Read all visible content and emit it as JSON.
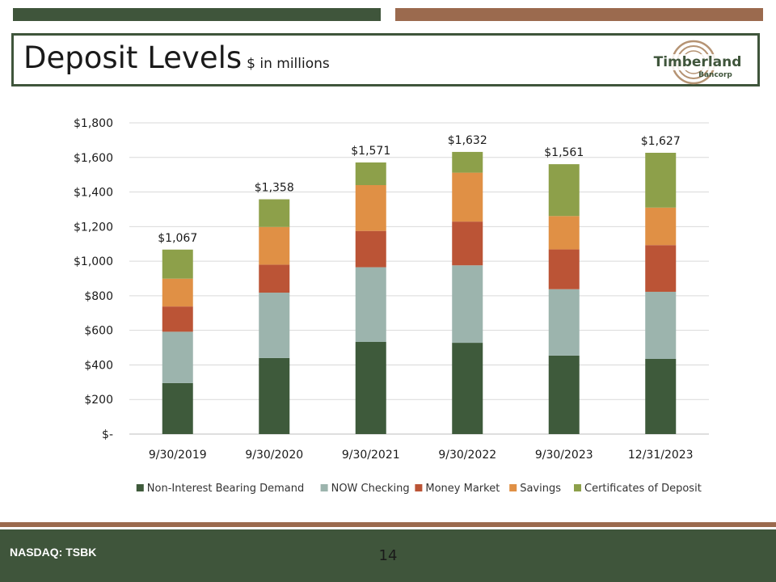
{
  "header": {
    "title": "Deposit Levels",
    "subtitle": "$ in millions",
    "logo_text_line1": "Timberland",
    "logo_text_line2": "Bancorp"
  },
  "footer": {
    "ticker": "NASDAQ: TSBK",
    "page_number": "14"
  },
  "colors": {
    "dark_green": "#3f553b",
    "brown": "#9b6a4e"
  },
  "chart_data": {
    "type": "bar",
    "stacked": true,
    "title": "",
    "xlabel": "",
    "ylabel": "",
    "ylim": [
      0,
      1800
    ],
    "y_ticks": [
      0,
      200,
      400,
      600,
      800,
      1000,
      1200,
      1400,
      1600,
      1800
    ],
    "y_tick_labels": [
      "$-",
      "$200",
      "$400",
      "$600",
      "$800",
      "$1,000",
      "$1,200",
      "$1,400",
      "$1,600",
      "$1,800"
    ],
    "categories": [
      "9/30/2019",
      "9/30/2020",
      "9/30/2021",
      "9/30/2022",
      "9/30/2023",
      "12/31/2023"
    ],
    "totals": [
      "$1,067",
      "$1,358",
      "$1,571",
      "$1,632",
      "$1,561",
      "$1,627"
    ],
    "legend_position": "bottom",
    "series": [
      {
        "name": "Non-Interest Bearing Demand",
        "color": "#3e5a3b",
        "values": [
          295,
          440,
          533,
          528,
          454,
          435
        ]
      },
      {
        "name": "NOW Checking",
        "color": "#9cb4ad",
        "values": [
          297,
          378,
          432,
          448,
          384,
          388
        ]
      },
      {
        "name": "Money Market",
        "color": "#bb5436",
        "values": [
          146,
          162,
          210,
          253,
          230,
          270
        ]
      },
      {
        "name": "Savings",
        "color": "#e09045",
        "values": [
          161,
          218,
          265,
          283,
          193,
          217
        ]
      },
      {
        "name": "Certificates of Deposit",
        "color": "#8da04a",
        "values": [
          168,
          160,
          131,
          120,
          300,
          317
        ]
      }
    ]
  }
}
